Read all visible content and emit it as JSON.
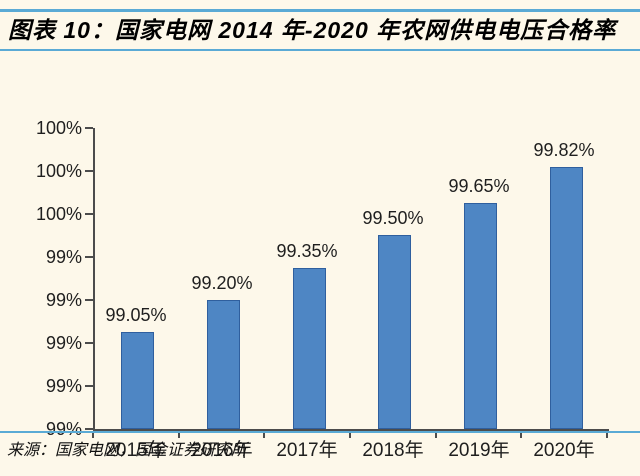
{
  "header": {
    "title": "图表 10：国家电网 2014 年-2020 年农网供电电压合格率"
  },
  "footer": {
    "source": "来源：国家电网，国金证券研究所"
  },
  "chart_data": {
    "type": "bar",
    "title": "国家电网 2014 年-2020 年农网供电电压合格率",
    "categories": [
      "2015年",
      "2016年",
      "2017年",
      "2018年",
      "2019年",
      "2020年"
    ],
    "values": [
      99.05,
      99.2,
      99.35,
      99.5,
      99.65,
      99.82
    ],
    "value_labels": [
      "99.05%",
      "99.20%",
      "99.35%",
      "99.50%",
      "99.65%",
      "99.82%"
    ],
    "xlabel": "",
    "ylabel": "",
    "ylim": [
      98.6,
      100.0
    ],
    "ytick_interval": 0.2,
    "ytick_labels_top_to_bottom": [
      "100%",
      "100%",
      "100%",
      "99%",
      "99%",
      "99%",
      "99%",
      "99%"
    ],
    "grid": false,
    "legend_position": "none"
  },
  "colors": {
    "background": "#fdf8ea",
    "divider_blue": "#5aaad5",
    "bar_fill": "#4e86c4",
    "bar_border": "#2f5f9e",
    "axis_line": "#4c4c4c",
    "text": "#1f1f1f"
  }
}
